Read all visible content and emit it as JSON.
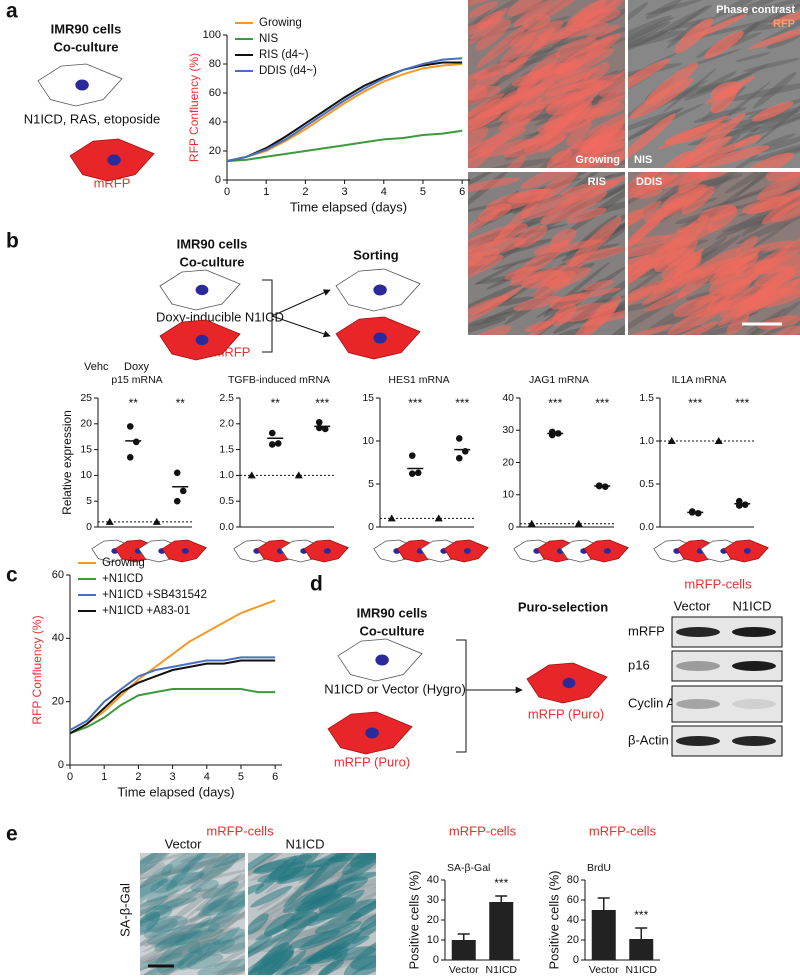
{
  "panel_labels": [
    "a",
    "b",
    "c",
    "d",
    "e"
  ],
  "panel_a": {
    "title1": "IMR90 cells",
    "title2": "Co-culture",
    "treatment": "N1ICD, RAS, etoposide",
    "mrfp": "mRFP"
  },
  "micrographs": {
    "legend_phase": "Phase contrast",
    "legend_rfp": "RFP",
    "labels": [
      "Growing",
      "NIS",
      "RIS",
      "DDIS"
    ]
  },
  "panel_b": {
    "title1": "IMR90 cells",
    "title2": "Co-culture",
    "treatment": "Doxy-inducible N1ICD",
    "mrfp": "mRFP",
    "sorting": "Sorting",
    "legend": [
      "Vehc",
      "Doxy"
    ]
  },
  "panel_d": {
    "title1": "IMR90 cells",
    "title2": "Co-culture",
    "treatment": "N1ICD or Vector (Hygro)",
    "mrfp": "mRFP (Puro)",
    "selection": "Puro-selection",
    "result": "mRFP (Puro)"
  },
  "blot": {
    "header": "mRFP-cells",
    "lanes": [
      "Vector",
      "N1ICD"
    ],
    "rows": [
      "mRFP",
      "p16",
      "Cyclin A",
      "β-Actin"
    ]
  },
  "staining": {
    "header": "mRFP-cells",
    "lanes": [
      "Vector",
      "N1ICD"
    ],
    "stain": "SA-β-Gal"
  },
  "chart_data": [
    {
      "type": "line",
      "xlabel": "Time elapsed (days)",
      "ylabel": "RFP Confluency (%)",
      "ylabel_color": "#e8312f",
      "x": [
        0,
        0.5,
        1,
        1.5,
        2,
        2.5,
        3,
        3.5,
        4,
        4.5,
        5,
        5.5,
        6
      ],
      "xlim": [
        0,
        6.2
      ],
      "xticks": [
        0,
        1,
        2,
        3,
        4,
        5,
        6
      ],
      "ylim": [
        0,
        100
      ],
      "yticks": [
        0,
        20,
        40,
        60,
        80,
        100
      ],
      "legend": "upper left",
      "series": [
        {
          "name": "Growing",
          "color": "#f39a26",
          "values": [
            13,
            16,
            20,
            27,
            35,
            44,
            53,
            61,
            68,
            73,
            77,
            79,
            80
          ]
        },
        {
          "name": "NIS",
          "color": "#3d9a3a",
          "values": [
            13,
            14,
            16,
            18,
            20,
            22,
            24,
            26,
            28,
            29,
            31,
            32,
            34
          ]
        },
        {
          "name": "RIS (d4~)",
          "color": "#111111",
          "values": [
            13,
            16,
            22,
            30,
            39,
            48,
            57,
            65,
            71,
            76,
            79,
            81,
            81
          ]
        },
        {
          "name": "DDIS (d4~)",
          "color": "#4a6fc0",
          "values": [
            13,
            16,
            21,
            28,
            37,
            46,
            55,
            63,
            70,
            76,
            80,
            83,
            84
          ]
        }
      ]
    },
    {
      "type": "dot",
      "title": "p15 mRNA",
      "ylabel": "Relative expression",
      "ylim": [
        0,
        25
      ],
      "yticks": [
        0,
        5,
        10,
        15,
        20,
        25
      ],
      "hline": 1,
      "vehc": [
        1,
        1
      ],
      "doxy": [
        [
          19.5,
          16.5,
          13.5
        ],
        [
          10.5,
          7,
          5
        ]
      ],
      "means": [
        16.7,
        7.8
      ],
      "annotations": [
        "**",
        "**"
      ]
    },
    {
      "type": "dot",
      "title": "TGFB-induced mRNA",
      "ylim": [
        0,
        2.5
      ],
      "yticks": [
        {
          "value": 0,
          "label": "0.0"
        },
        {
          "value": 0.5,
          "label": "0.5"
        },
        {
          "value": 1,
          "label": "1.0"
        },
        {
          "value": 1.5,
          "label": "1.5"
        },
        {
          "value": 2,
          "label": "2.0"
        },
        {
          "value": 2.5,
          "label": "2.5"
        }
      ],
      "hline": 1,
      "vehc": [
        1,
        1
      ],
      "doxy": [
        [
          1.82,
          1.62,
          1.6
        ],
        [
          2.03,
          1.9,
          1.92
        ]
      ],
      "means": [
        1.72,
        1.95
      ],
      "annotations": [
        "**",
        "***"
      ]
    },
    {
      "type": "dot",
      "title": "HES1 mRNA",
      "ylim": [
        0,
        15
      ],
      "yticks": [
        0,
        5,
        10,
        15
      ],
      "hline": 1,
      "vehc": [
        1,
        1
      ],
      "doxy": [
        [
          8.3,
          6.3,
          6.2
        ],
        [
          10.3,
          8.8,
          8
        ]
      ],
      "means": [
        6.8,
        9
      ],
      "annotations": [
        "***",
        "***"
      ]
    },
    {
      "type": "dot",
      "title": "JAG1 mRNA",
      "ylim": [
        0,
        40
      ],
      "yticks": [
        0,
        10,
        20,
        30,
        40
      ],
      "hline": 1,
      "vehc": [
        1,
        1
      ],
      "doxy": [
        [
          29.5,
          29,
          28.5
        ],
        [
          12.8,
          12.5,
          12.7
        ]
      ],
      "means": [
        29,
        12.7
      ],
      "annotations": [
        "***",
        "***"
      ]
    },
    {
      "type": "dot",
      "title": "IL1A mRNA",
      "ylim": [
        0,
        1.5
      ],
      "yticks": [
        {
          "value": 0,
          "label": "0.0"
        },
        {
          "value": 0.5,
          "label": "0.5"
        },
        {
          "value": 1,
          "label": "1.0"
        },
        {
          "value": 1.5,
          "label": "1.5"
        }
      ],
      "hline": 1,
      "vehc": [
        1,
        1
      ],
      "doxy": [
        [
          0.18,
          0.16,
          0.17
        ],
        [
          0.3,
          0.26,
          0.25
        ]
      ],
      "means": [
        0.17,
        0.27
      ],
      "annotations": [
        "***",
        "***"
      ]
    },
    {
      "type": "line",
      "xlabel": "Time elapsed (days)",
      "ylabel": "RFP Confluency (%)",
      "ylabel_color": "#e8312f",
      "x": [
        0,
        0.5,
        1,
        1.5,
        2,
        2.5,
        3,
        3.5,
        4,
        4.5,
        5,
        5.5,
        6
      ],
      "xlim": [
        0,
        6.2
      ],
      "xticks": [
        0,
        1,
        2,
        3,
        4,
        5,
        6
      ],
      "ylim": [
        0,
        60
      ],
      "yticks": [
        0,
        20,
        40,
        60
      ],
      "legend": "upper left",
      "series": [
        {
          "name": "Growing",
          "color": "#f39a26",
          "values": [
            10,
            13,
            17,
            22,
            27,
            31,
            35,
            39,
            42,
            45,
            48,
            50,
            52
          ]
        },
        {
          "name": "+N1ICD",
          "color": "#3d9a3a",
          "values": [
            10,
            12,
            15,
            19,
            22,
            23,
            24,
            24,
            24,
            24,
            24,
            23,
            23
          ]
        },
        {
          "name": "+N1ICD +SB431542",
          "color": "#4a6fc0",
          "values": [
            11,
            14,
            20,
            24,
            28,
            30,
            31,
            32,
            33,
            33,
            34,
            34,
            34
          ]
        },
        {
          "name": "+N1ICD +A83-01",
          "color": "#111111",
          "values": [
            10,
            13,
            18,
            23,
            26,
            28,
            30,
            31,
            32,
            32,
            33,
            33,
            33
          ]
        }
      ]
    },
    {
      "type": "bar",
      "header": "mRFP-cells",
      "title": "SA-β-Gal",
      "ylabel": "Positive cells (%)",
      "categories": [
        "Vector",
        "N1ICD"
      ],
      "values": [
        10,
        29
      ],
      "errors": [
        3,
        3
      ],
      "color": "#222222",
      "ylim": [
        0,
        40
      ],
      "yticks": [
        0,
        10,
        20,
        30,
        40
      ],
      "significance": "***"
    },
    {
      "type": "bar",
      "header": "mRFP-cells",
      "title": "BrdU",
      "ylabel": "Positive cells (%)",
      "categories": [
        "Vector",
        "N1ICD"
      ],
      "values": [
        50,
        21
      ],
      "errors": [
        12,
        11
      ],
      "color": "#222222",
      "ylim": [
        0,
        80
      ],
      "yticks": [
        0,
        20,
        40,
        60,
        80
      ],
      "significance": "***"
    }
  ]
}
